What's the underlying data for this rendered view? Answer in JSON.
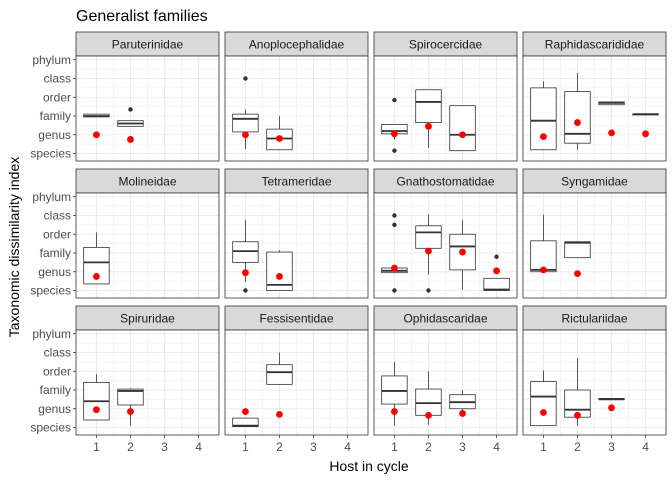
{
  "chart_data": {
    "type": "boxplot",
    "title": "Generalist families",
    "xlabel": "Host in cycle",
    "ylabel": "Taxonomic dissimilarity index",
    "x_ticks": [
      "1",
      "2",
      "3",
      "4"
    ],
    "y_ticks": [
      "species",
      "genus",
      "family",
      "order",
      "class",
      "phylum"
    ],
    "ylim": [
      0.6,
      6.2
    ],
    "xlim": [
      0.4,
      4.6
    ],
    "grid": true,
    "colors": {
      "box": "#333333",
      "mean": "#ff0000",
      "panel_bg": "#ffffff",
      "grid": "#ebebeb",
      "strip_bg": "#d9d9d9",
      "panel_border": "#333333"
    },
    "panels": [
      {
        "name": "Paruterinidae",
        "groups": [
          {
            "x": 1,
            "q1": 2.95,
            "median": 3.0,
            "q3": 3.1,
            "lower": 2.95,
            "upper": 3.1,
            "outliers": [],
            "mean": 2.0
          },
          {
            "x": 2,
            "q1": 2.45,
            "median": 2.6,
            "q3": 2.75,
            "lower": 2.45,
            "upper": 2.75,
            "outliers": [
              3.35,
              1.8
            ],
            "mean": 1.75
          }
        ]
      },
      {
        "name": "Anoplocephalidae",
        "groups": [
          {
            "x": 1,
            "q1": 2.15,
            "median": 2.85,
            "q3": 3.1,
            "lower": 1.25,
            "upper": 3.35,
            "outliers": [
              5.0
            ],
            "mean": 2.0
          },
          {
            "x": 2,
            "q1": 1.2,
            "median": 1.8,
            "q3": 2.3,
            "lower": 1.2,
            "upper": 3.0,
            "outliers": [],
            "mean": 1.8
          }
        ]
      },
      {
        "name": "Spirocercidae",
        "groups": [
          {
            "x": 1,
            "q1": 2.05,
            "median": 2.2,
            "q3": 2.55,
            "lower": 1.75,
            "upper": 2.55,
            "outliers": [
              3.85,
              1.15
            ],
            "mean": 2.05
          },
          {
            "x": 2,
            "q1": 2.65,
            "median": 3.75,
            "q3": 4.4,
            "lower": 1.3,
            "upper": 4.4,
            "outliers": [],
            "mean": 2.45
          },
          {
            "x": 3,
            "q1": 1.15,
            "median": 2.0,
            "q3": 3.55,
            "lower": 1.15,
            "upper": 3.55,
            "outliers": [],
            "mean": 2.0
          }
        ]
      },
      {
        "name": "Raphidascarididae",
        "groups": [
          {
            "x": 1,
            "q1": 1.2,
            "median": 2.75,
            "q3": 4.5,
            "lower": 1.2,
            "upper": 4.85,
            "outliers": [],
            "mean": 1.9
          },
          {
            "x": 2,
            "q1": 1.55,
            "median": 2.05,
            "q3": 4.3,
            "lower": 1.2,
            "upper": 5.3,
            "outliers": [],
            "mean": 2.65
          },
          {
            "x": 3,
            "q1": 3.6,
            "median": 3.7,
            "q3": 3.75,
            "lower": 3.6,
            "upper": 3.75,
            "outliers": [],
            "mean": 2.1
          },
          {
            "x": 4,
            "q1": 3.1,
            "median": 3.1,
            "q3": 3.1,
            "lower": 3.1,
            "upper": 3.1,
            "outliers": [],
            "mean": 2.05
          }
        ]
      },
      {
        "name": "Molineidae",
        "groups": [
          {
            "x": 1,
            "q1": 1.35,
            "median": 2.5,
            "q3": 3.3,
            "lower": 1.35,
            "upper": 4.1,
            "outliers": [],
            "mean": 1.75
          }
        ]
      },
      {
        "name": "Tetrameridae",
        "groups": [
          {
            "x": 1,
            "q1": 2.5,
            "median": 3.1,
            "q3": 3.6,
            "lower": 1.45,
            "upper": 4.75,
            "outliers": [
              1.0
            ],
            "mean": 1.95
          },
          {
            "x": 2,
            "q1": 1.0,
            "median": 1.3,
            "q3": 3.05,
            "lower": 1.0,
            "upper": 3.15,
            "outliers": [],
            "mean": 1.75
          }
        ]
      },
      {
        "name": "Gnathostomatidae",
        "groups": [
          {
            "x": 1,
            "q1": 1.95,
            "median": 2.05,
            "q3": 2.2,
            "lower": 1.95,
            "upper": 2.2,
            "outliers": [
              5.0,
              4.5,
              1.0
            ],
            "mean": 2.2
          },
          {
            "x": 2,
            "q1": 3.25,
            "median": 4.1,
            "q3": 4.45,
            "lower": 1.85,
            "upper": 5.05,
            "outliers": [
              1.0
            ],
            "mean": 3.1
          },
          {
            "x": 3,
            "q1": 2.1,
            "median": 3.35,
            "q3": 4.0,
            "lower": 1.05,
            "upper": 4.75,
            "outliers": [],
            "mean": 3.05
          },
          {
            "x": 4,
            "q1": 1.0,
            "median": 1.05,
            "q3": 1.65,
            "lower": 1.0,
            "upper": 1.65,
            "outliers": [
              2.8
            ],
            "mean": 2.05
          }
        ]
      },
      {
        "name": "Syngamidae",
        "groups": [
          {
            "x": 1,
            "q1": 2.0,
            "median": 2.1,
            "q3": 3.65,
            "lower": 2.0,
            "upper": 5.05,
            "outliers": [],
            "mean": 2.1
          },
          {
            "x": 2,
            "q1": 2.75,
            "median": 3.55,
            "q3": 3.6,
            "lower": 2.75,
            "upper": 3.6,
            "outliers": [],
            "mean": 1.9
          }
        ]
      },
      {
        "name": "Spiruridae",
        "groups": [
          {
            "x": 1,
            "q1": 1.4,
            "median": 2.4,
            "q3": 3.4,
            "lower": 1.4,
            "upper": 3.85,
            "outliers": [],
            "mean": 1.95
          },
          {
            "x": 2,
            "q1": 2.2,
            "median": 2.95,
            "q3": 3.05,
            "lower": 1.1,
            "upper": 3.1,
            "outliers": [],
            "mean": 1.85
          }
        ]
      },
      {
        "name": "Fessisentidae",
        "groups": [
          {
            "x": 1,
            "q1": 1.05,
            "median": 1.1,
            "q3": 1.5,
            "lower": 1.05,
            "upper": 1.5,
            "outliers": [],
            "mean": 1.85
          },
          {
            "x": 2,
            "q1": 3.3,
            "median": 3.95,
            "q3": 4.35,
            "lower": 3.3,
            "upper": 5.0,
            "outliers": [],
            "mean": 1.7
          }
        ]
      },
      {
        "name": "Ophidascaridae",
        "groups": [
          {
            "x": 1,
            "q1": 2.25,
            "median": 2.95,
            "q3": 3.75,
            "lower": 1.1,
            "upper": 4.5,
            "outliers": [],
            "mean": 1.85
          },
          {
            "x": 2,
            "q1": 1.65,
            "median": 2.3,
            "q3": 3.05,
            "lower": 1.15,
            "upper": 4.0,
            "outliers": [],
            "mean": 1.65
          },
          {
            "x": 3,
            "q1": 2.0,
            "median": 2.35,
            "q3": 2.75,
            "lower": 1.7,
            "upper": 3.0,
            "outliers": [],
            "mean": 1.75
          }
        ]
      },
      {
        "name": "Rictulariidae",
        "groups": [
          {
            "x": 1,
            "q1": 1.1,
            "median": 2.65,
            "q3": 3.45,
            "lower": 1.1,
            "upper": 4.05,
            "outliers": [],
            "mean": 1.8
          },
          {
            "x": 2,
            "q1": 1.55,
            "median": 1.95,
            "q3": 3.0,
            "lower": 1.1,
            "upper": 4.7,
            "outliers": [],
            "mean": 1.65
          },
          {
            "x": 3,
            "q1": 2.5,
            "median": 2.5,
            "q3": 2.55,
            "lower": 2.5,
            "upper": 2.55,
            "outliers": [],
            "mean": 2.05
          }
        ]
      }
    ]
  }
}
